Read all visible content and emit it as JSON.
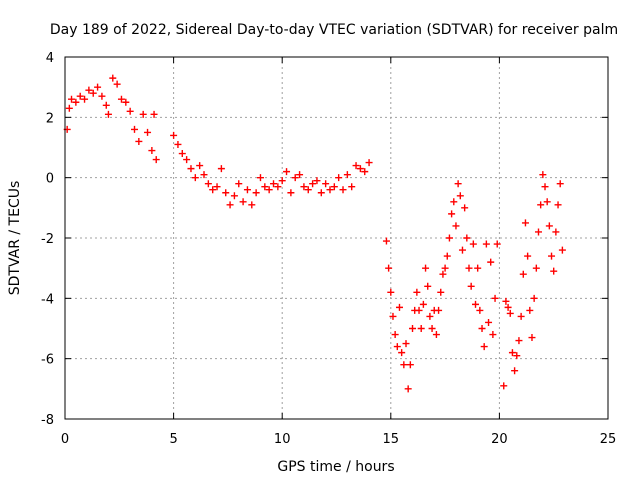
{
  "chart_data": {
    "type": "scatter",
    "title": "Day 189 of 2022, Sidereal Day-to-day VTEC variation (SDTVAR) for receiver palm",
    "xlabel": "GPS time / hours",
    "ylabel": "SDTVAR / TECUs",
    "xlim": [
      0,
      25
    ],
    "ylim": [
      -8,
      4
    ],
    "x_ticks": [
      "0",
      "5",
      "10",
      "15",
      "20",
      "25"
    ],
    "y_ticks": [
      "4",
      "2",
      "0",
      "-2",
      "-4",
      "-6",
      "-8"
    ],
    "grid": true,
    "marker": "+",
    "color": "#ff0000",
    "series": [
      {
        "name": "SDTVAR",
        "points": [
          [
            0.1,
            1.6
          ],
          [
            0.2,
            2.3
          ],
          [
            0.3,
            2.6
          ],
          [
            0.5,
            2.5
          ],
          [
            0.7,
            2.7
          ],
          [
            0.9,
            2.6
          ],
          [
            1.1,
            2.9
          ],
          [
            1.3,
            2.8
          ],
          [
            1.5,
            3.0
          ],
          [
            1.7,
            2.7
          ],
          [
            1.9,
            2.4
          ],
          [
            2.0,
            2.1
          ],
          [
            2.2,
            3.3
          ],
          [
            2.4,
            3.1
          ],
          [
            2.6,
            2.6
          ],
          [
            2.8,
            2.5
          ],
          [
            3.0,
            2.2
          ],
          [
            3.2,
            1.6
          ],
          [
            3.4,
            1.2
          ],
          [
            3.6,
            2.1
          ],
          [
            3.8,
            1.5
          ],
          [
            4.0,
            0.9
          ],
          [
            4.2,
            0.6
          ],
          [
            4.1,
            2.1
          ],
          [
            5.0,
            1.4
          ],
          [
            5.2,
            1.1
          ],
          [
            5.4,
            0.8
          ],
          [
            5.6,
            0.6
          ],
          [
            5.8,
            0.3
          ],
          [
            6.0,
            0.0
          ],
          [
            6.2,
            0.4
          ],
          [
            6.4,
            0.1
          ],
          [
            6.6,
            -0.2
          ],
          [
            6.8,
            -0.4
          ],
          [
            7.0,
            -0.3
          ],
          [
            7.2,
            0.3
          ],
          [
            7.4,
            -0.5
          ],
          [
            7.6,
            -0.9
          ],
          [
            7.8,
            -0.6
          ],
          [
            8.0,
            -0.2
          ],
          [
            8.2,
            -0.8
          ],
          [
            8.4,
            -0.4
          ],
          [
            8.6,
            -0.9
          ],
          [
            8.8,
            -0.5
          ],
          [
            9.0,
            0.0
          ],
          [
            9.2,
            -0.3
          ],
          [
            9.4,
            -0.4
          ],
          [
            9.6,
            -0.2
          ],
          [
            9.8,
            -0.3
          ],
          [
            10.0,
            -0.1
          ],
          [
            10.2,
            0.2
          ],
          [
            10.4,
            -0.5
          ],
          [
            10.6,
            0.0
          ],
          [
            10.8,
            0.1
          ],
          [
            11.0,
            -0.3
          ],
          [
            11.2,
            -0.4
          ],
          [
            11.4,
            -0.2
          ],
          [
            11.6,
            -0.1
          ],
          [
            11.8,
            -0.5
          ],
          [
            12.0,
            -0.2
          ],
          [
            12.2,
            -0.4
          ],
          [
            12.4,
            -0.3
          ],
          [
            12.6,
            0.0
          ],
          [
            12.8,
            -0.4
          ],
          [
            13.0,
            0.1
          ],
          [
            13.2,
            -0.3
          ],
          [
            13.4,
            0.4
          ],
          [
            13.6,
            0.3
          ],
          [
            13.8,
            0.2
          ],
          [
            14.0,
            0.5
          ],
          [
            14.8,
            -2.1
          ],
          [
            14.9,
            -3.0
          ],
          [
            15.0,
            -3.8
          ],
          [
            15.1,
            -4.6
          ],
          [
            15.2,
            -5.2
          ],
          [
            15.3,
            -5.6
          ],
          [
            15.4,
            -4.3
          ],
          [
            15.5,
            -5.8
          ],
          [
            15.6,
            -6.2
          ],
          [
            15.7,
            -5.5
          ],
          [
            15.8,
            -7.0
          ],
          [
            15.9,
            -6.2
          ],
          [
            16.0,
            -5.0
          ],
          [
            16.1,
            -4.4
          ],
          [
            16.2,
            -3.8
          ],
          [
            16.3,
            -4.4
          ],
          [
            16.4,
            -5.0
          ],
          [
            16.5,
            -4.2
          ],
          [
            16.6,
            -3.0
          ],
          [
            16.7,
            -3.6
          ],
          [
            16.8,
            -4.6
          ],
          [
            16.9,
            -5.0
          ],
          [
            17.0,
            -4.4
          ],
          [
            17.1,
            -5.2
          ],
          [
            17.2,
            -4.4
          ],
          [
            17.3,
            -3.8
          ],
          [
            17.4,
            -3.2
          ],
          [
            17.5,
            -3.0
          ],
          [
            17.6,
            -2.6
          ],
          [
            17.7,
            -2.0
          ],
          [
            17.8,
            -1.2
          ],
          [
            17.9,
            -0.8
          ],
          [
            18.0,
            -1.6
          ],
          [
            18.1,
            -0.2
          ],
          [
            18.2,
            -0.6
          ],
          [
            18.3,
            -2.4
          ],
          [
            18.4,
            -1.0
          ],
          [
            18.5,
            -2.0
          ],
          [
            18.6,
            -3.0
          ],
          [
            18.7,
            -3.6
          ],
          [
            18.8,
            -2.2
          ],
          [
            18.9,
            -4.2
          ],
          [
            19.0,
            -3.0
          ],
          [
            19.1,
            -4.4
          ],
          [
            19.2,
            -5.0
          ],
          [
            19.3,
            -5.6
          ],
          [
            19.4,
            -2.2
          ],
          [
            19.5,
            -4.8
          ],
          [
            19.6,
            -2.8
          ],
          [
            19.7,
            -5.2
          ],
          [
            19.8,
            -4.0
          ],
          [
            19.9,
            -2.2
          ],
          [
            20.2,
            -6.9
          ],
          [
            20.3,
            -4.1
          ],
          [
            20.4,
            -4.3
          ],
          [
            20.5,
            -4.5
          ],
          [
            20.6,
            -5.8
          ],
          [
            20.7,
            -6.4
          ],
          [
            20.8,
            -5.9
          ],
          [
            20.9,
            -5.4
          ],
          [
            21.0,
            -4.6
          ],
          [
            21.1,
            -3.2
          ],
          [
            21.2,
            -1.5
          ],
          [
            21.3,
            -2.6
          ],
          [
            21.4,
            -4.4
          ],
          [
            21.5,
            -5.3
          ],
          [
            21.6,
            -4.0
          ],
          [
            21.7,
            -3.0
          ],
          [
            21.8,
            -1.8
          ],
          [
            21.9,
            -0.9
          ],
          [
            22.0,
            0.1
          ],
          [
            22.1,
            -0.3
          ],
          [
            22.2,
            -0.8
          ],
          [
            22.3,
            -1.6
          ],
          [
            22.4,
            -2.6
          ],
          [
            22.5,
            -3.1
          ],
          [
            22.6,
            -1.8
          ],
          [
            22.7,
            -0.9
          ],
          [
            22.8,
            -0.2
          ],
          [
            22.9,
            -2.4
          ]
        ]
      }
    ]
  }
}
